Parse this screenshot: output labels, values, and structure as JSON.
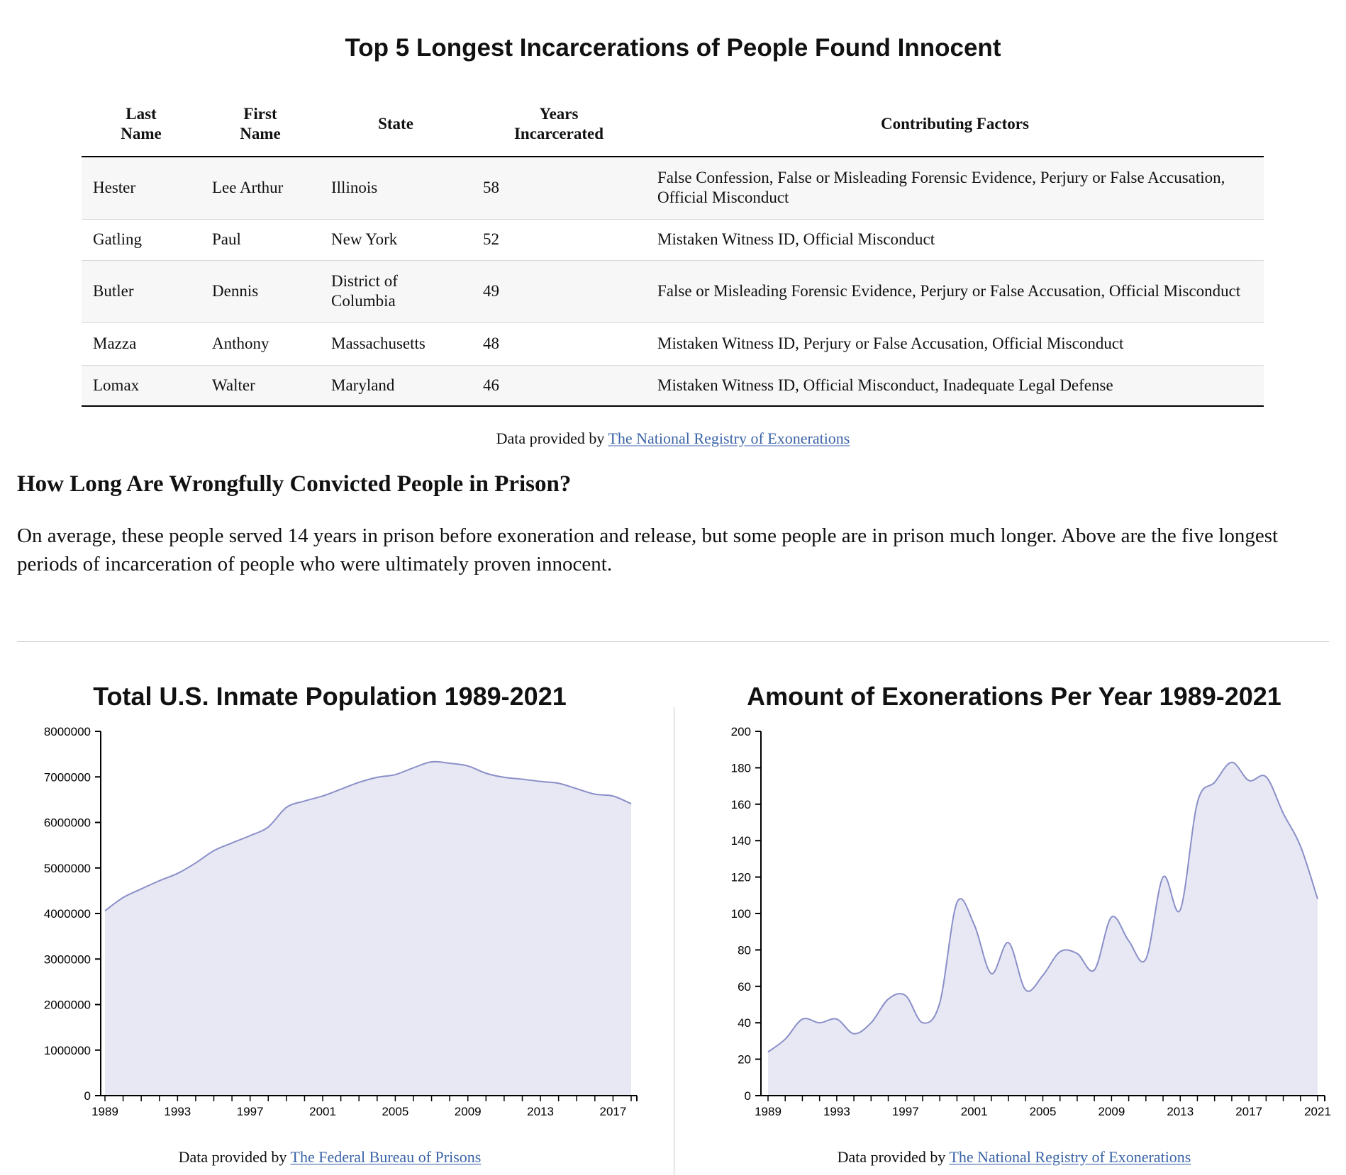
{
  "table": {
    "title": "Top 5 Longest Incarcerations of People Found Innocent",
    "headers": {
      "last_name": [
        "Last",
        "Name"
      ],
      "first_name": [
        "First",
        "Name"
      ],
      "state": "State",
      "years": [
        "Years",
        "Incarcerated"
      ],
      "factors": "Contributing Factors"
    },
    "rows": [
      {
        "last": "Hester",
        "first": "Lee Arthur",
        "state": "Illinois",
        "years": "58",
        "factors": "False Confession, False or Misleading Forensic Evidence, Perjury or False Accusation, Official Misconduct"
      },
      {
        "last": "Gatling",
        "first": "Paul",
        "state": "New York",
        "years": "52",
        "factors": "Mistaken Witness ID, Official Misconduct"
      },
      {
        "last": "Butler",
        "first": "Dennis",
        "state": "District of Columbia",
        "years": "49",
        "factors": "False or Misleading Forensic Evidence, Perjury or False Accusation, Official Misconduct"
      },
      {
        "last": "Mazza",
        "first": "Anthony",
        "state": "Massachusetts",
        "years": "48",
        "factors": "Mistaken Witness ID, Perjury or False Accusation, Official Misconduct"
      },
      {
        "last": "Lomax",
        "first": "Walter",
        "state": "Maryland",
        "years": "46",
        "factors": "Mistaken Witness ID, Official Misconduct, Inadequate Legal Defense"
      }
    ],
    "credit_prefix": "Data provided by ",
    "credit_link": "The National Registry of Exonerations"
  },
  "section": {
    "heading": "How Long Are Wrongfully Convicted People in Prison?",
    "paragraph": "On average, these people served 14 years in prison before exoneration and release, but some people are in prison much longer. Above are the five longest periods of incarceration of people who were ultimately proven innocent."
  },
  "colors": {
    "area_fill": "#e8e8f5",
    "area_stroke": "#8a8fc8",
    "link": "#3b64a8"
  },
  "chart_data": [
    {
      "type": "area",
      "title": "Total U.S. Inmate Population 1989-2021",
      "xlabel": "",
      "ylabel": "",
      "xlim": [
        1989,
        2018
      ],
      "ylim": [
        0,
        8000000
      ],
      "x_ticks": [
        1989,
        1993,
        1997,
        2001,
        2005,
        2009,
        2013,
        2017
      ],
      "y_ticks": [
        0,
        1000000,
        2000000,
        3000000,
        4000000,
        5000000,
        6000000,
        7000000,
        8000000
      ],
      "grid": false,
      "x": [
        1989,
        1990,
        1991,
        1992,
        1993,
        1994,
        1995,
        1996,
        1997,
        1998,
        1999,
        2000,
        2001,
        2002,
        2003,
        2004,
        2005,
        2006,
        2007,
        2008,
        2009,
        2010,
        2011,
        2012,
        2013,
        2014,
        2015,
        2016,
        2017,
        2018
      ],
      "values": [
        4060000,
        4350000,
        4540000,
        4720000,
        4880000,
        5110000,
        5380000,
        5550000,
        5710000,
        5900000,
        6330000,
        6470000,
        6580000,
        6730000,
        6880000,
        6990000,
        7050000,
        7200000,
        7330000,
        7300000,
        7240000,
        7080000,
        6990000,
        6950000,
        6900000,
        6860000,
        6740000,
        6620000,
        6580000,
        6410000
      ],
      "credit_prefix": "Data provided by ",
      "credit_link": "The Federal Bureau of Prisons"
    },
    {
      "type": "area",
      "title": "Amount of Exonerations Per Year 1989-2021",
      "xlabel": "",
      "ylabel": "",
      "xlim": [
        1989,
        2021
      ],
      "ylim": [
        0,
        200
      ],
      "x_ticks": [
        1989,
        1993,
        1997,
        2001,
        2005,
        2009,
        2013,
        2017,
        2021
      ],
      "y_ticks": [
        0,
        20,
        40,
        60,
        80,
        100,
        120,
        140,
        160,
        180,
        200
      ],
      "grid": false,
      "x": [
        1989,
        1990,
        1991,
        1992,
        1993,
        1994,
        1995,
        1996,
        1997,
        1998,
        1999,
        2000,
        2001,
        2002,
        2003,
        2004,
        2005,
        2006,
        2007,
        2008,
        2009,
        2010,
        2011,
        2012,
        2013,
        2014,
        2015,
        2016,
        2017,
        2018,
        2019,
        2020,
        2021
      ],
      "values": [
        24,
        31,
        42,
        40,
        42,
        34,
        40,
        53,
        55,
        40,
        51,
        106,
        94,
        67,
        84,
        58,
        66,
        79,
        78,
        69,
        98,
        85,
        75,
        120,
        102,
        161,
        172,
        183,
        173,
        175,
        155,
        137,
        108
      ],
      "credit_prefix": "Data provided by ",
      "credit_link": "The National Registry of Exonerations"
    }
  ]
}
